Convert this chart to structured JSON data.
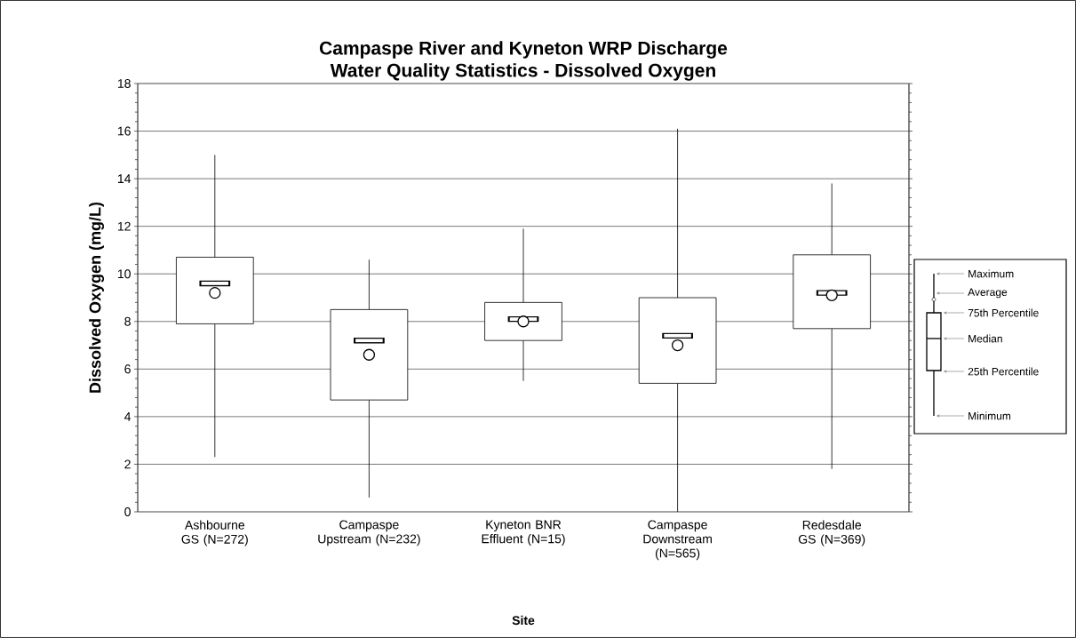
{
  "chart_data": {
    "type": "box",
    "title": "Campaspe River and Kyneton WRP Discharge",
    "subtitle": "Water Quality Statistics - Dissolved Oxygen",
    "xlabel": "Site",
    "ylabel": "Dissolved Oxygen (mg/L)",
    "categories": [
      "Ashbourne GS (N=272)",
      "Campaspe Upstream (N=232)",
      "Kyneton BNR Effluent (N=15)",
      "Campaspe Downstream (N=565)",
      "Redesdale GS (N=369)"
    ],
    "boxes": [
      {
        "low": 2.3,
        "q1": 7.9,
        "median": 9.6,
        "q3": 10.7,
        "high": 15.0,
        "mean": 9.2
      },
      {
        "low": 0.6,
        "q1": 4.7,
        "median": 7.2,
        "q3": 8.5,
        "high": 10.6,
        "mean": 6.6
      },
      {
        "low": 5.5,
        "q1": 7.2,
        "median": 8.1,
        "q3": 8.8,
        "high": 11.9,
        "mean": 8.0
      },
      {
        "low": 0.0,
        "q1": 5.4,
        "median": 7.4,
        "q3": 9.0,
        "high": 16.1,
        "mean": 7.0
      },
      {
        "low": 1.8,
        "q1": 7.7,
        "median": 9.2,
        "q3": 10.8,
        "high": 13.8,
        "mean": 9.1
      }
    ],
    "color": "#000000",
    "ylim": [
      0,
      18
    ],
    "yticks": [
      0,
      2,
      4,
      6,
      8,
      10,
      12,
      14,
      16,
      18
    ],
    "grid": "y",
    "annotations": [
      "Maximum",
      "Average",
      "75th Percentile",
      "Median",
      "25th Percentile",
      "Minimum"
    ]
  }
}
